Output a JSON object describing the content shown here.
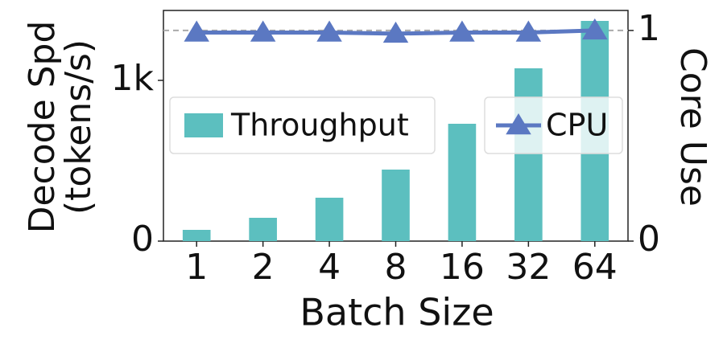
{
  "chart_data": {
    "type": "bar_line",
    "categories": [
      "1",
      "2",
      "4",
      "8",
      "16",
      "32",
      "64"
    ],
    "x_label": "Batch Size",
    "y_label": [
      "Decode Spd",
      "(tokens/s)"
    ],
    "y2_label": "Core Use",
    "series": [
      {
        "name": "Throughput",
        "type": "bar",
        "color": "#5cbfbf",
        "values": [
          70,
          145,
          270,
          445,
          730,
          1075,
          1370
        ]
      },
      {
        "name": "CPU",
        "type": "line",
        "axis": "y2",
        "color": "#5b78c2",
        "values": [
          0.99,
          0.99,
          0.99,
          0.985,
          0.99,
          0.99,
          1.0
        ]
      }
    ],
    "ylim": [
      0,
      1435
    ],
    "yticks": [
      0,
      {
        "value": 1000,
        "label": "1k"
      }
    ],
    "y2lim": [
      0,
      1.095
    ],
    "y2ticks": [
      0,
      1
    ],
    "reference_line": {
      "axis": "y2",
      "value": 1
    }
  }
}
